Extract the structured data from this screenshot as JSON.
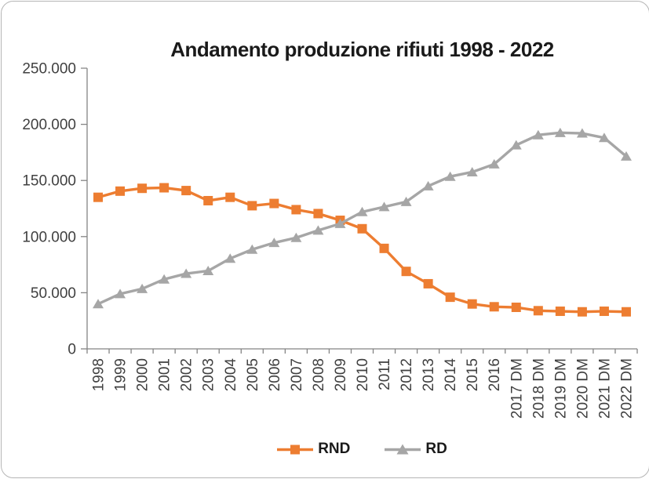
{
  "chart_data": {
    "type": "line",
    "title": "Andamento produzione rifiuti 1998 - 2022",
    "categories": [
      "1998",
      "1999",
      "2000",
      "2001",
      "2002",
      "2003",
      "2004",
      "2005",
      "2006",
      "2007",
      "2008",
      "2009",
      "2010",
      "2011",
      "2012",
      "2013",
      "2014",
      "2015",
      "2016",
      "2017 DM",
      "2018 DM",
      "2019 DM",
      "2020 DM",
      "2021 DM",
      "2022 DM"
    ],
    "series": [
      {
        "name": "RND",
        "color": "#ED7D31",
        "marker": "square",
        "values": [
          135000,
          140500,
          143000,
          143500,
          141000,
          132000,
          135000,
          127500,
          129500,
          124000,
          120500,
          114500,
          107000,
          89500,
          69000,
          58000,
          46000,
          40000,
          37500,
          37000,
          34000,
          33500,
          33000,
          33500,
          33000
        ]
      },
      {
        "name": "RD",
        "color": "#A6A6A6",
        "marker": "triangle",
        "values": [
          40000,
          49000,
          53500,
          62000,
          67000,
          69500,
          80500,
          88500,
          94500,
          99000,
          105500,
          111500,
          122000,
          126500,
          131000,
          145000,
          153500,
          157500,
          164500,
          181500,
          190500,
          192500,
          192000,
          188000,
          171500
        ]
      }
    ],
    "y_axis": {
      "min": 0,
      "max": 250000,
      "tick_interval": 50000,
      "tick_labels": [
        "0",
        "50.000",
        "100.000",
        "150.000",
        "200.000",
        "250.000"
      ]
    },
    "x_axis": {
      "label_rotation": -90
    },
    "legend_position": "bottom",
    "grid": false,
    "colors": {
      "axis_line": "#848484",
      "axis_text": "#404040",
      "title_text": "#1a1a1a",
      "background": "#ffffff",
      "frame_border": "#b5b5b5"
    }
  }
}
